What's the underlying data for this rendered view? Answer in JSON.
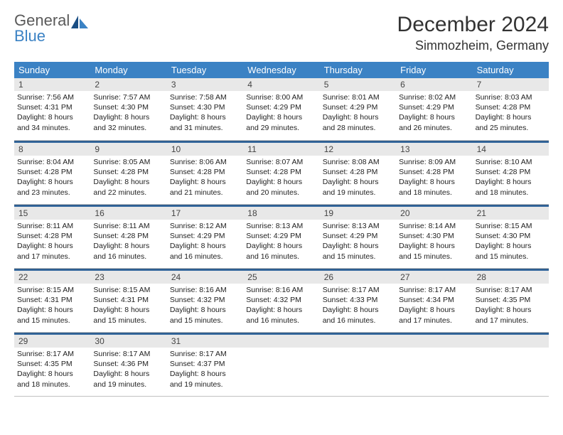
{
  "brand": {
    "line1": "General",
    "line2": "Blue"
  },
  "title": "December 2024",
  "location": "Simmozheim, Germany",
  "colors": {
    "header_bg": "#3b82c4",
    "header_text": "#ffffff",
    "daynum_bg": "#e8e8e8",
    "week_divider": "#2f5f91",
    "brand_gray": "#5a5a5a",
    "brand_blue": "#3b82c4"
  },
  "day_names": [
    "Sunday",
    "Monday",
    "Tuesday",
    "Wednesday",
    "Thursday",
    "Friday",
    "Saturday"
  ],
  "days": [
    {
      "n": "1",
      "sr": "Sunrise: 7:56 AM",
      "ss": "Sunset: 4:31 PM",
      "dl1": "Daylight: 8 hours",
      "dl2": "and 34 minutes."
    },
    {
      "n": "2",
      "sr": "Sunrise: 7:57 AM",
      "ss": "Sunset: 4:30 PM",
      "dl1": "Daylight: 8 hours",
      "dl2": "and 32 minutes."
    },
    {
      "n": "3",
      "sr": "Sunrise: 7:58 AM",
      "ss": "Sunset: 4:30 PM",
      "dl1": "Daylight: 8 hours",
      "dl2": "and 31 minutes."
    },
    {
      "n": "4",
      "sr": "Sunrise: 8:00 AM",
      "ss": "Sunset: 4:29 PM",
      "dl1": "Daylight: 8 hours",
      "dl2": "and 29 minutes."
    },
    {
      "n": "5",
      "sr": "Sunrise: 8:01 AM",
      "ss": "Sunset: 4:29 PM",
      "dl1": "Daylight: 8 hours",
      "dl2": "and 28 minutes."
    },
    {
      "n": "6",
      "sr": "Sunrise: 8:02 AM",
      "ss": "Sunset: 4:29 PM",
      "dl1": "Daylight: 8 hours",
      "dl2": "and 26 minutes."
    },
    {
      "n": "7",
      "sr": "Sunrise: 8:03 AM",
      "ss": "Sunset: 4:28 PM",
      "dl1": "Daylight: 8 hours",
      "dl2": "and 25 minutes."
    },
    {
      "n": "8",
      "sr": "Sunrise: 8:04 AM",
      "ss": "Sunset: 4:28 PM",
      "dl1": "Daylight: 8 hours",
      "dl2": "and 23 minutes."
    },
    {
      "n": "9",
      "sr": "Sunrise: 8:05 AM",
      "ss": "Sunset: 4:28 PM",
      "dl1": "Daylight: 8 hours",
      "dl2": "and 22 minutes."
    },
    {
      "n": "10",
      "sr": "Sunrise: 8:06 AM",
      "ss": "Sunset: 4:28 PM",
      "dl1": "Daylight: 8 hours",
      "dl2": "and 21 minutes."
    },
    {
      "n": "11",
      "sr": "Sunrise: 8:07 AM",
      "ss": "Sunset: 4:28 PM",
      "dl1": "Daylight: 8 hours",
      "dl2": "and 20 minutes."
    },
    {
      "n": "12",
      "sr": "Sunrise: 8:08 AM",
      "ss": "Sunset: 4:28 PM",
      "dl1": "Daylight: 8 hours",
      "dl2": "and 19 minutes."
    },
    {
      "n": "13",
      "sr": "Sunrise: 8:09 AM",
      "ss": "Sunset: 4:28 PM",
      "dl1": "Daylight: 8 hours",
      "dl2": "and 18 minutes."
    },
    {
      "n": "14",
      "sr": "Sunrise: 8:10 AM",
      "ss": "Sunset: 4:28 PM",
      "dl1": "Daylight: 8 hours",
      "dl2": "and 18 minutes."
    },
    {
      "n": "15",
      "sr": "Sunrise: 8:11 AM",
      "ss": "Sunset: 4:28 PM",
      "dl1": "Daylight: 8 hours",
      "dl2": "and 17 minutes."
    },
    {
      "n": "16",
      "sr": "Sunrise: 8:11 AM",
      "ss": "Sunset: 4:28 PM",
      "dl1": "Daylight: 8 hours",
      "dl2": "and 16 minutes."
    },
    {
      "n": "17",
      "sr": "Sunrise: 8:12 AM",
      "ss": "Sunset: 4:29 PM",
      "dl1": "Daylight: 8 hours",
      "dl2": "and 16 minutes."
    },
    {
      "n": "18",
      "sr": "Sunrise: 8:13 AM",
      "ss": "Sunset: 4:29 PM",
      "dl1": "Daylight: 8 hours",
      "dl2": "and 16 minutes."
    },
    {
      "n": "19",
      "sr": "Sunrise: 8:13 AM",
      "ss": "Sunset: 4:29 PM",
      "dl1": "Daylight: 8 hours",
      "dl2": "and 15 minutes."
    },
    {
      "n": "20",
      "sr": "Sunrise: 8:14 AM",
      "ss": "Sunset: 4:30 PM",
      "dl1": "Daylight: 8 hours",
      "dl2": "and 15 minutes."
    },
    {
      "n": "21",
      "sr": "Sunrise: 8:15 AM",
      "ss": "Sunset: 4:30 PM",
      "dl1": "Daylight: 8 hours",
      "dl2": "and 15 minutes."
    },
    {
      "n": "22",
      "sr": "Sunrise: 8:15 AM",
      "ss": "Sunset: 4:31 PM",
      "dl1": "Daylight: 8 hours",
      "dl2": "and 15 minutes."
    },
    {
      "n": "23",
      "sr": "Sunrise: 8:15 AM",
      "ss": "Sunset: 4:31 PM",
      "dl1": "Daylight: 8 hours",
      "dl2": "and 15 minutes."
    },
    {
      "n": "24",
      "sr": "Sunrise: 8:16 AM",
      "ss": "Sunset: 4:32 PM",
      "dl1": "Daylight: 8 hours",
      "dl2": "and 15 minutes."
    },
    {
      "n": "25",
      "sr": "Sunrise: 8:16 AM",
      "ss": "Sunset: 4:32 PM",
      "dl1": "Daylight: 8 hours",
      "dl2": "and 16 minutes."
    },
    {
      "n": "26",
      "sr": "Sunrise: 8:17 AM",
      "ss": "Sunset: 4:33 PM",
      "dl1": "Daylight: 8 hours",
      "dl2": "and 16 minutes."
    },
    {
      "n": "27",
      "sr": "Sunrise: 8:17 AM",
      "ss": "Sunset: 4:34 PM",
      "dl1": "Daylight: 8 hours",
      "dl2": "and 17 minutes."
    },
    {
      "n": "28",
      "sr": "Sunrise: 8:17 AM",
      "ss": "Sunset: 4:35 PM",
      "dl1": "Daylight: 8 hours",
      "dl2": "and 17 minutes."
    },
    {
      "n": "29",
      "sr": "Sunrise: 8:17 AM",
      "ss": "Sunset: 4:35 PM",
      "dl1": "Daylight: 8 hours",
      "dl2": "and 18 minutes."
    },
    {
      "n": "30",
      "sr": "Sunrise: 8:17 AM",
      "ss": "Sunset: 4:36 PM",
      "dl1": "Daylight: 8 hours",
      "dl2": "and 19 minutes."
    },
    {
      "n": "31",
      "sr": "Sunrise: 8:17 AM",
      "ss": "Sunset: 4:37 PM",
      "dl1": "Daylight: 8 hours",
      "dl2": "and 19 minutes."
    }
  ]
}
